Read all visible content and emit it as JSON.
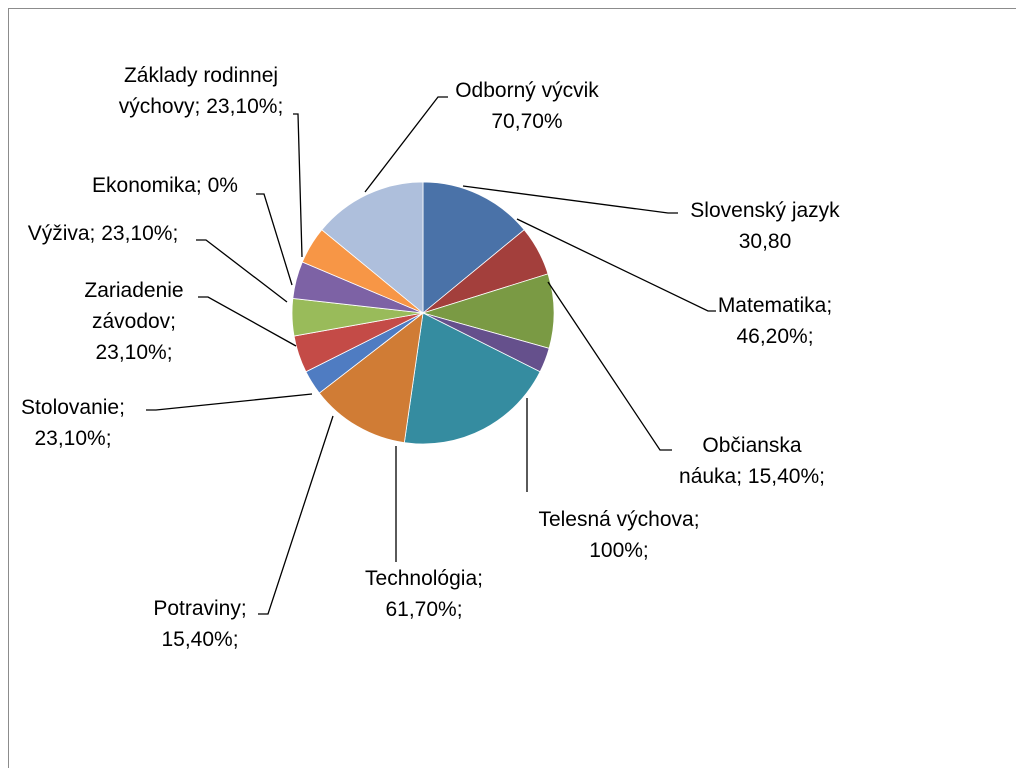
{
  "chart_data": {
    "type": "pie",
    "title": "",
    "slices": [
      {
        "label_lines": [
          "Odborný výcvik",
          "70,70%"
        ],
        "value": 70.7,
        "color": "#4a72a8"
      },
      {
        "label_lines": [
          "Slovenský jazyk",
          "30,80"
        ],
        "value": 30.8,
        "color": "#a33f3c"
      },
      {
        "label_lines": [
          "Matematika;",
          "46,20%;"
        ],
        "value": 46.2,
        "color": "#7a9a44"
      },
      {
        "label_lines": [
          "Občianska",
          "náuka; 15,40%;"
        ],
        "value": 15.4,
        "color": "#65508c"
      },
      {
        "label_lines": [
          "Telesná výchova;",
          "100%;"
        ],
        "value": 100,
        "color": "#358ca0"
      },
      {
        "label_lines": [
          "Technológia;",
          "61,70%;"
        ],
        "value": 61.7,
        "color": "#d07c35"
      },
      {
        "label_lines": [
          "Potraviny;",
          "15,40%;"
        ],
        "value": 15.4,
        "color": "#4f7cc2"
      },
      {
        "label_lines": [
          "Stolovanie;",
          "23,10%;"
        ],
        "value": 23.1,
        "color": "#c44b47"
      },
      {
        "label_lines": [
          "Zariadenie",
          "závodov;",
          "23,10%;"
        ],
        "value": 23.1,
        "color": "#99bb5a"
      },
      {
        "label_lines": [
          "Výživa; 23,10%;"
        ],
        "value": 23.1,
        "color": "#7d62a5"
      },
      {
        "label_lines": [
          "Ekonomika; 0%"
        ],
        "value": 0,
        "color": "#3aa7c1"
      },
      {
        "label_lines": [
          "Základy rodinnej",
          "výchovy; 23,10%;"
        ],
        "value": 23.1,
        "color": "#f79646"
      },
      {
        "label_lines": [],
        "value": 70.7,
        "color": "#aebfdc"
      }
    ]
  }
}
